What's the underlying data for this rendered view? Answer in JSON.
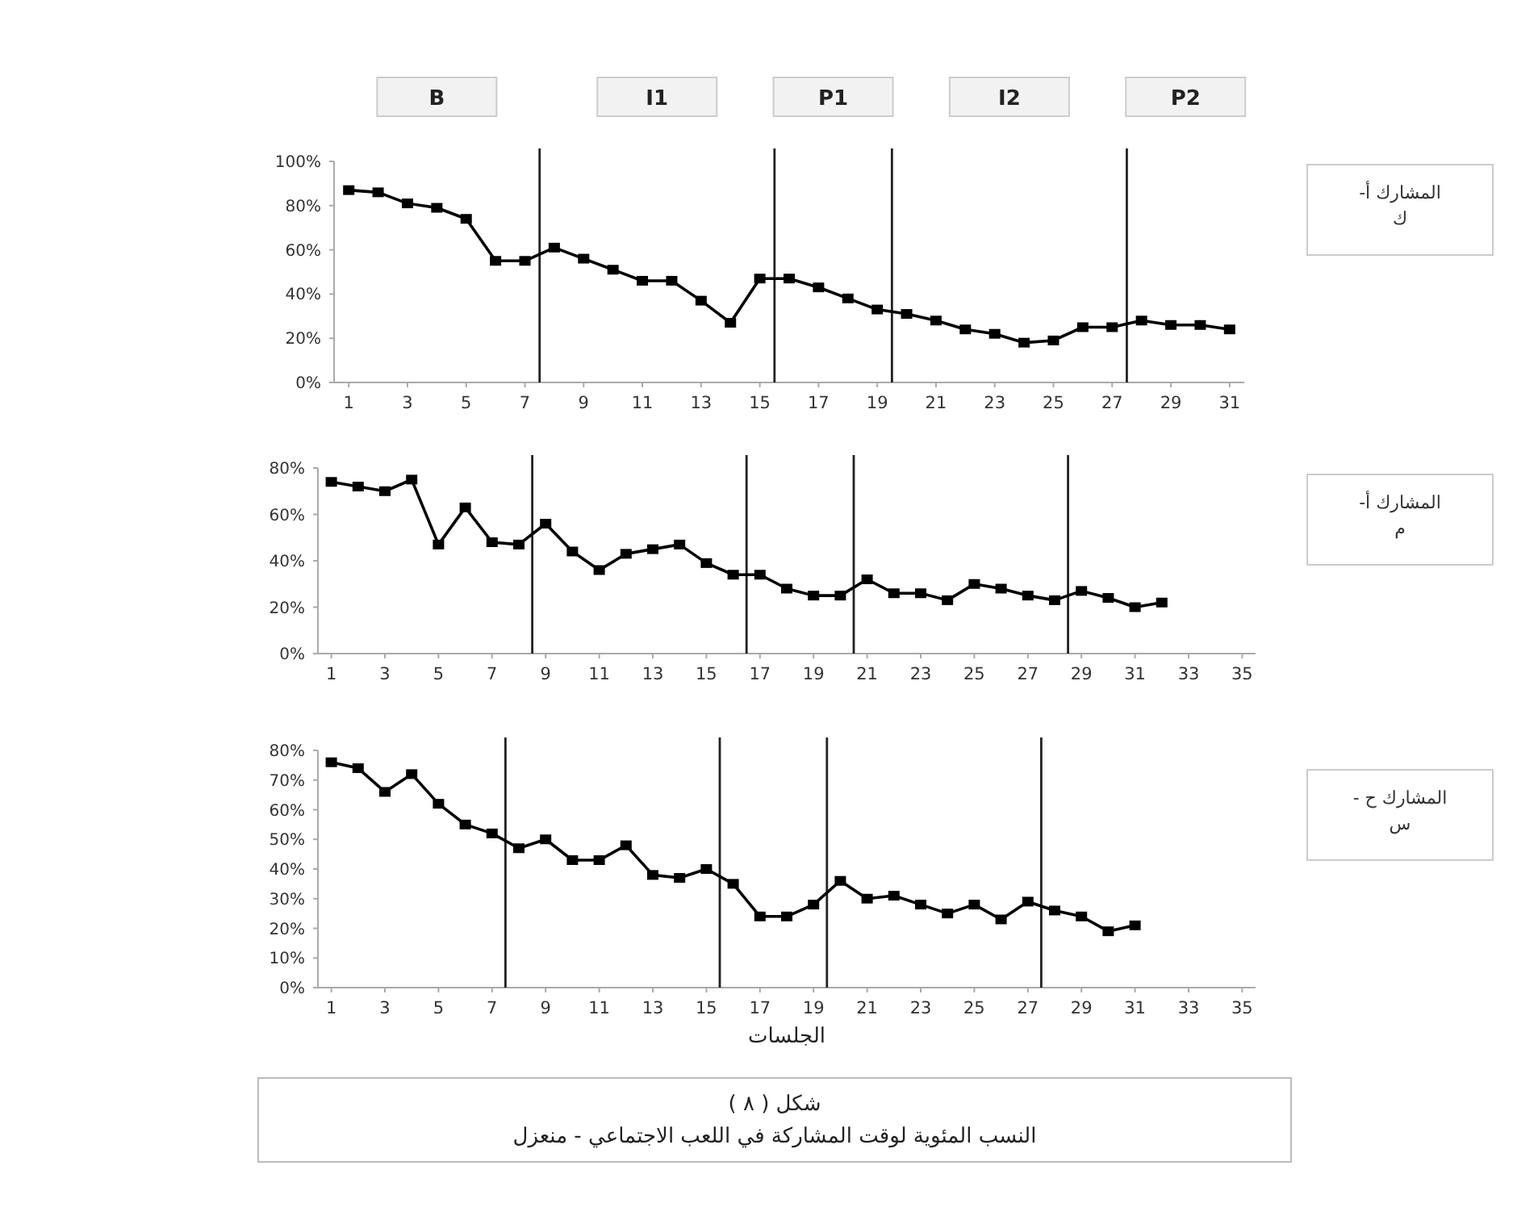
{
  "chart_data": [
    {
      "type": "line",
      "ylabel": "المشارك أ- ك",
      "x": [
        1,
        2,
        3,
        4,
        5,
        6,
        7,
        8,
        9,
        10,
        11,
        12,
        13,
        14,
        15,
        16,
        17,
        18,
        19,
        20,
        21,
        22,
        23,
        24,
        25,
        26,
        27,
        28,
        29,
        30,
        31
      ],
      "series": [
        {
          "color": "#000000",
          "values": [
            87,
            86,
            81,
            79,
            74,
            55,
            55,
            61,
            56,
            51,
            46,
            46,
            37,
            27,
            47,
            47,
            43,
            38,
            33,
            31,
            28,
            24,
            22,
            18,
            19,
            25,
            25,
            28,
            26,
            26,
            24
          ]
        }
      ],
      "xlim": [
        0.5,
        31.5
      ],
      "xticks": [
        1,
        3,
        5,
        7,
        9,
        11,
        13,
        15,
        17,
        19,
        21,
        23,
        25,
        27,
        29,
        31
      ],
      "ylim": [
        0,
        100
      ],
      "yticks": [
        {
          "value": 0,
          "label": "0%"
        },
        {
          "value": 20,
          "label": "20%"
        },
        {
          "value": 40,
          "label": "40%"
        },
        {
          "value": 60,
          "label": "60%"
        },
        {
          "value": 80,
          "label": "80%"
        },
        {
          "value": 100,
          "label": "100%"
        }
      ],
      "marker": "square",
      "line_style": "solid",
      "ref_lines": [
        {
          "axis": "x",
          "value": 7.5
        },
        {
          "axis": "x",
          "value": 15.5
        },
        {
          "axis": "x",
          "value": 19.5
        },
        {
          "axis": "x",
          "value": 27.5
        }
      ],
      "annotations": [
        "B",
        "I1",
        "P1",
        "I2",
        "P2"
      ]
    },
    {
      "type": "line",
      "ylabel": "المشارك أ- م",
      "x": [
        1,
        2,
        3,
        4,
        5,
        6,
        7,
        8,
        9,
        10,
        11,
        12,
        13,
        14,
        15,
        16,
        17,
        18,
        19,
        20,
        21,
        22,
        23,
        24,
        25,
        26,
        27,
        28,
        29,
        30,
        31,
        32
      ],
      "series": [
        {
          "color": "#000000",
          "values": [
            74,
            72,
            70,
            75,
            47,
            63,
            48,
            47,
            56,
            44,
            36,
            43,
            45,
            47,
            39,
            34,
            34,
            28,
            25,
            25,
            32,
            26,
            26,
            23,
            30,
            28,
            25,
            23,
            27,
            24,
            20,
            22
          ]
        }
      ],
      "xlim": [
        0.5,
        35.5
      ],
      "xticks": [
        1,
        3,
        5,
        7,
        9,
        11,
        13,
        15,
        17,
        19,
        21,
        23,
        25,
        27,
        29,
        31,
        33,
        35
      ],
      "ylim": [
        0,
        80
      ],
      "yticks": [
        {
          "value": 0,
          "label": "0%"
        },
        {
          "value": 20,
          "label": "20%"
        },
        {
          "value": 40,
          "label": "40%"
        },
        {
          "value": 60,
          "label": "60%"
        },
        {
          "value": 80,
          "label": "80%"
        }
      ],
      "marker": "square",
      "line_style": "solid",
      "ref_lines": [
        {
          "axis": "x",
          "value": 8.5
        },
        {
          "axis": "x",
          "value": 16.5
        },
        {
          "axis": "x",
          "value": 20.5
        },
        {
          "axis": "x",
          "value": 28.5
        }
      ]
    },
    {
      "type": "line",
      "ylabel": "المشارك ح - س",
      "xlabel": "الجلسات",
      "x": [
        1,
        2,
        3,
        4,
        5,
        6,
        7,
        8,
        9,
        10,
        11,
        12,
        13,
        14,
        15,
        16,
        17,
        18,
        19,
        20,
        21,
        22,
        23,
        24,
        25,
        26,
        27,
        28,
        29,
        30,
        31
      ],
      "series": [
        {
          "color": "#000000",
          "values": [
            76,
            74,
            66,
            72,
            62,
            55,
            52,
            47,
            50,
            43,
            43,
            48,
            38,
            37,
            40,
            35,
            24,
            24,
            28,
            36,
            30,
            31,
            28,
            25,
            28,
            23,
            29,
            26,
            24,
            19,
            21
          ]
        }
      ],
      "xlim": [
        0.5,
        35.5
      ],
      "xticks": [
        1,
        3,
        5,
        7,
        9,
        11,
        13,
        15,
        17,
        19,
        21,
        23,
        25,
        27,
        29,
        31,
        33,
        35
      ],
      "ylim": [
        0,
        80
      ],
      "yticks": [
        {
          "value": 0,
          "label": "0%"
        },
        {
          "value": 10,
          "label": "10%"
        },
        {
          "value": 20,
          "label": "20%"
        },
        {
          "value": 30,
          "label": "30%"
        },
        {
          "value": 40,
          "label": "40%"
        },
        {
          "value": 50,
          "label": "50%"
        },
        {
          "value": 60,
          "label": "60%"
        },
        {
          "value": 70,
          "label": "70%"
        },
        {
          "value": 80,
          "label": "80%"
        }
      ],
      "marker": "square",
      "line_style": "solid",
      "ref_lines": [
        {
          "axis": "x",
          "value": 7.5
        },
        {
          "axis": "x",
          "value": 15.5
        },
        {
          "axis": "x",
          "value": 19.5
        },
        {
          "axis": "x",
          "value": 27.5
        }
      ],
      "annotations": [
        "شكل ( ٨ )",
        "النسب المئوية لوقت المشاركة في اللعب الاجتماعي - منعزل"
      ]
    }
  ]
}
